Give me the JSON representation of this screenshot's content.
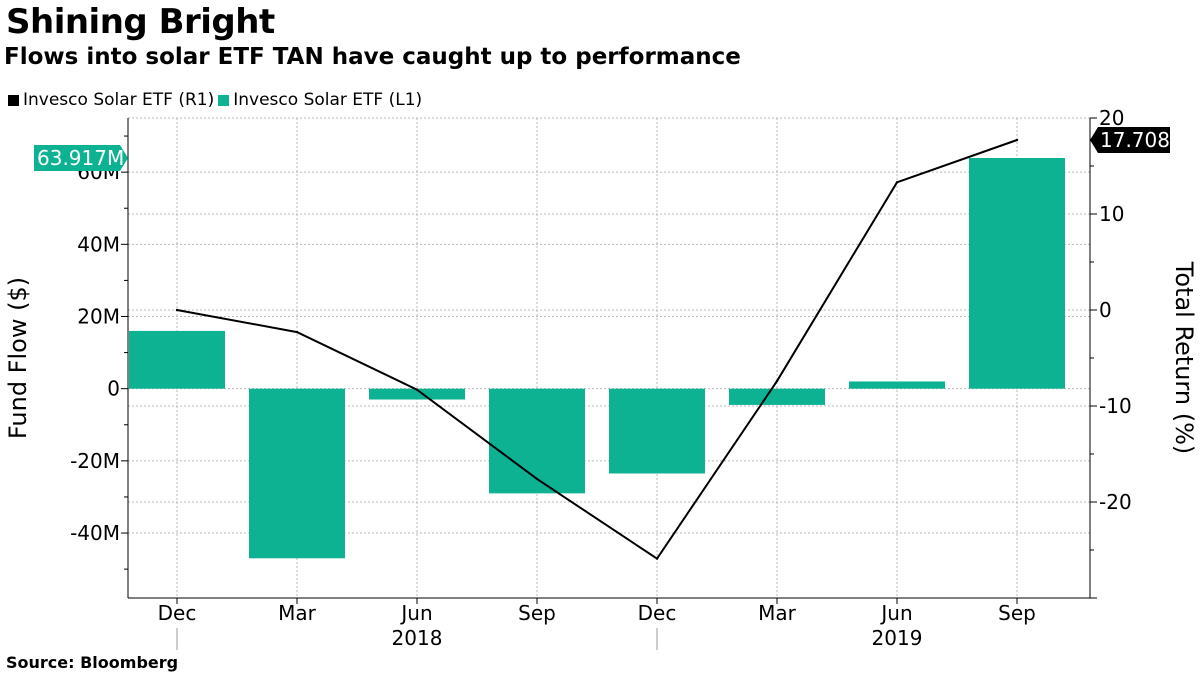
{
  "title": "Shining Bright",
  "subtitle": "Flows into solar ETF TAN have caught up to performance",
  "source": "Source: Bloomberg",
  "colors": {
    "bar": "#0db293",
    "line": "#000000",
    "label_line": "#000000"
  },
  "chart_data": {
    "type": "bar",
    "categories": [
      "Dec 2017",
      "Mar 2018",
      "Jun 2018",
      "Sep 2018",
      "Dec 2018",
      "Mar 2019",
      "Jun 2019",
      "Sep 2019"
    ],
    "x_tick_labels": [
      "Dec",
      "Mar",
      "Jun",
      "Sep",
      "Dec",
      "Mar",
      "Jun",
      "Sep"
    ],
    "x_year_labels": [
      {
        "label": "2018",
        "between": [
          1,
          3
        ]
      },
      {
        "label": "2019",
        "between": [
          5,
          7
        ]
      }
    ],
    "legend": [
      {
        "name": "Invesco Solar ETF  (R1)",
        "color": "#000000"
      },
      {
        "name": "Invesco Solar ETF  (L1)",
        "color": "#0db293"
      }
    ],
    "series": [
      {
        "name": "Invesco Solar ETF  (L1)",
        "kind": "bar",
        "axis": "left",
        "unit": "$",
        "values": [
          16,
          -47,
          -3,
          -29,
          -23.5,
          -4.5,
          2,
          63.917
        ]
      },
      {
        "name": "Invesco Solar ETF  (R1)",
        "kind": "line",
        "axis": "right",
        "unit": "%",
        "values": [
          0,
          -2.3,
          -8.3,
          -17.6,
          -25.9,
          -7.4,
          13.3,
          17.708
        ]
      }
    ],
    "left_axis": {
      "title": "Fund Flow ($)",
      "ylim": [
        -58,
        75
      ],
      "ticks": [
        -40,
        -20,
        0,
        20,
        40,
        60
      ],
      "tick_labels": [
        "-40M",
        "-20M",
        "0",
        "20M",
        "40M",
        "60M"
      ]
    },
    "right_axis": {
      "title": "Total Return (%)",
      "ylim": [
        -30,
        20
      ],
      "ticks": [
        -20,
        -10,
        0,
        10,
        20
      ],
      "tick_labels": [
        "-20",
        "-10",
        "0",
        "10",
        "20"
      ]
    },
    "last_value_labels": {
      "left": "63.917M",
      "right": "17.708"
    }
  }
}
